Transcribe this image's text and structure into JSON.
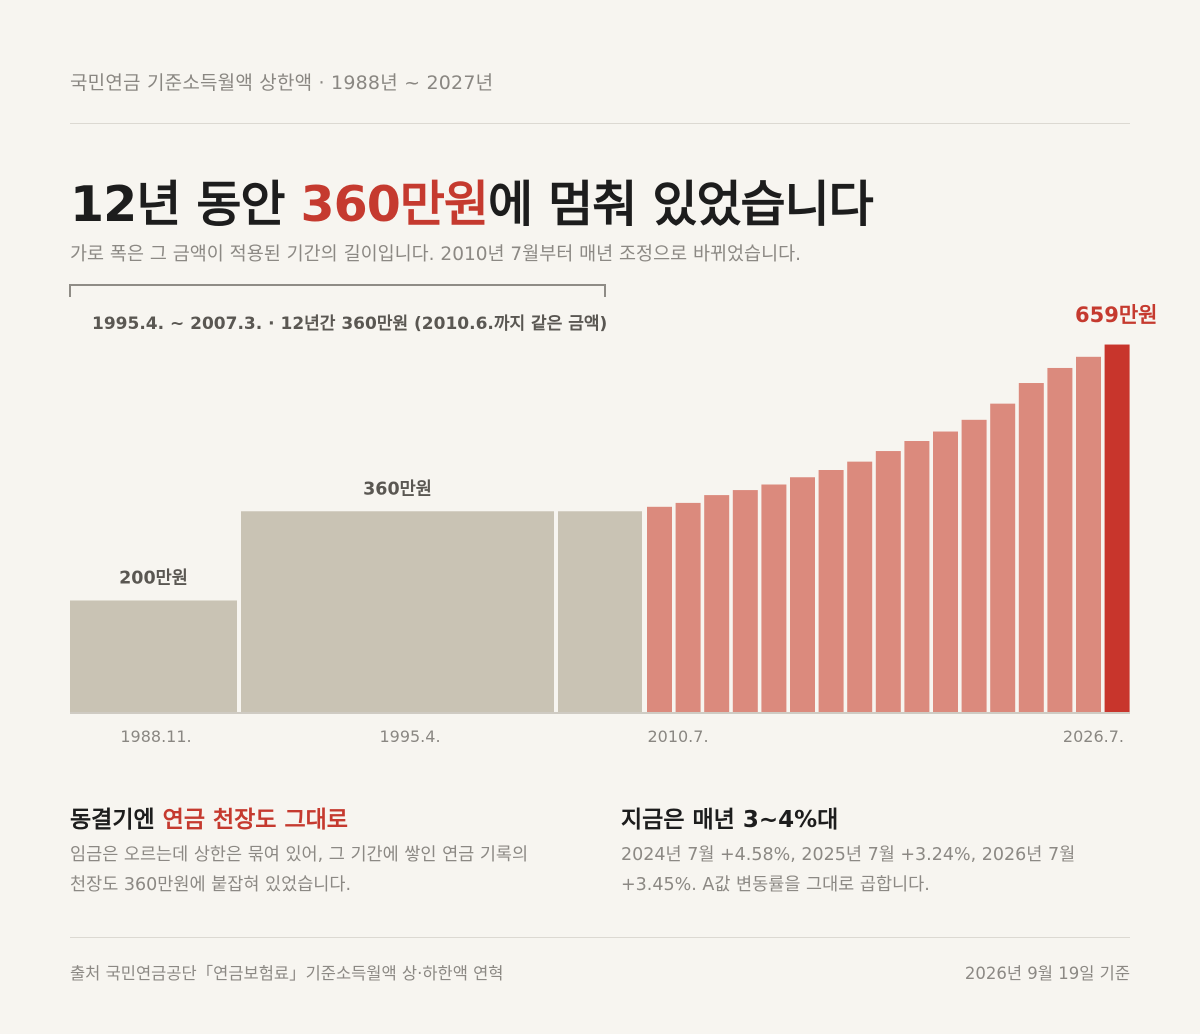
{
  "kicker": "국민연금 기준소득월액 상한액 · 1988년 ~ 2027년",
  "headline": {
    "pre": "12년 동안 ",
    "highlight": "360만원",
    "post": "에 멈춰 있었습니다"
  },
  "subhead": "가로 폭은 그 금액이 적용된 기간의 길이입니다. 2010년 7월부터 매년 조정으로 바뀌었습니다.",
  "bracket_label": "1995.4. ~ 2007.3. · 12년간 360만원 (2010.6.까지 같은 금액)",
  "latest_callout": "659만원",
  "colors": {
    "frozen": "#c9c3b4",
    "adjusted": "#db8a7d",
    "latest": "#c8352c",
    "accent": "#c53a2f"
  },
  "chart_data": {
    "type": "bar",
    "unit": "만원",
    "note": "variable-width bars; width = period the amount applied",
    "periods": [
      {
        "start": "1988.11.",
        "end": "1995.3.",
        "value": 200,
        "label": "200만원",
        "group": "frozen"
      },
      {
        "start": "1995.4.",
        "end": "2007.3.",
        "value": 360,
        "label": "360만원",
        "group": "frozen"
      },
      {
        "start": "2007.4.",
        "end": "2010.6.",
        "value": 360,
        "label": "",
        "group": "frozen"
      },
      {
        "start": "2010.7.",
        "value": 368,
        "group": "adjusted"
      },
      {
        "start": "2011.7.",
        "value": 375,
        "group": "adjusted"
      },
      {
        "start": "2012.7.",
        "value": 389,
        "group": "adjusted"
      },
      {
        "start": "2013.7.",
        "value": 398,
        "group": "adjusted"
      },
      {
        "start": "2014.7.",
        "value": 408,
        "group": "adjusted"
      },
      {
        "start": "2015.7.",
        "value": 421,
        "group": "adjusted"
      },
      {
        "start": "2016.7.",
        "value": 434,
        "group": "adjusted"
      },
      {
        "start": "2017.7.",
        "value": 449,
        "group": "adjusted"
      },
      {
        "start": "2018.7.",
        "value": 468,
        "group": "adjusted"
      },
      {
        "start": "2019.7.",
        "value": 486,
        "group": "adjusted"
      },
      {
        "start": "2020.7.",
        "value": 503,
        "group": "adjusted"
      },
      {
        "start": "2021.7.",
        "value": 524,
        "group": "adjusted"
      },
      {
        "start": "2022.7.",
        "value": 553,
        "group": "adjusted"
      },
      {
        "start": "2023.7.",
        "value": 590,
        "group": "adjusted"
      },
      {
        "start": "2024.7.",
        "value": 617,
        "group": "adjusted"
      },
      {
        "start": "2025.7.",
        "value": 637,
        "group": "adjusted"
      },
      {
        "start": "2026.7.",
        "end": "2027",
        "value": 659,
        "label": "659만원",
        "group": "latest"
      }
    ],
    "x_tick_labels": [
      "1988.11.",
      "1995.4.",
      "2010.7.",
      "2026.7."
    ],
    "ylim": [
      0,
      700
    ],
    "grid": false,
    "legend": "none"
  },
  "panels": [
    {
      "title_pre": "동결기엔 ",
      "title_highlight": "연금 천장도 그대로",
      "body": "임금은 오르는데 상한은 묶여 있어, 그 기간에 쌓인 연금 기록의 천장도 360만원에 붙잡혀 있었습니다."
    },
    {
      "title_pre": "지금은 매년 3~4%대",
      "title_highlight": "",
      "body": "2024년 7월 +4.58%, 2025년 7월 +3.24%, 2026년 7월 +3.45%. A값 변동률을 그대로 곱합니다."
    }
  ],
  "footer": {
    "source": "출처 국민연금공단「연금보험료」기준소득월액 상·하한액 연혁",
    "date": "2026년 9월 19일 기준"
  }
}
